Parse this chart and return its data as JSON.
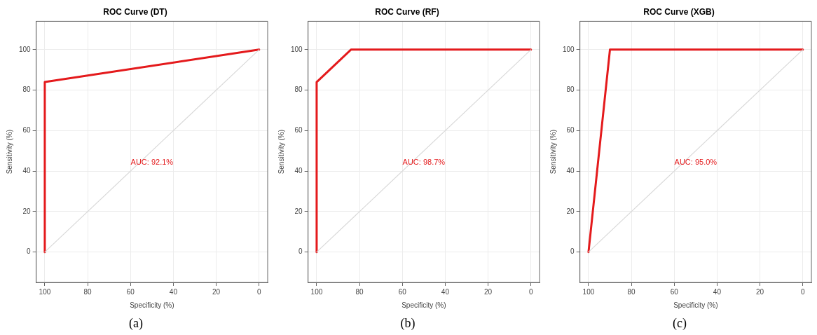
{
  "chart_data": [
    {
      "type": "line",
      "title": "ROC Curve (DT)",
      "xlabel": "Specificity (%)",
      "ylabel": "Sensitivity (%)",
      "xlim": [
        104,
        -4
      ],
      "ylim": [
        -15,
        114
      ],
      "xticks": [
        100,
        80,
        60,
        40,
        20,
        0
      ],
      "yticks": [
        0,
        20,
        40,
        60,
        80,
        100
      ],
      "grid": true,
      "series": [
        {
          "color": "#d9d9d9",
          "x": [
            100,
            0
          ],
          "values": [
            0,
            100
          ]
        },
        {
          "color": "#e41a1c",
          "x": [
            100,
            100,
            0
          ],
          "values": [
            0,
            84,
            100
          ]
        }
      ],
      "annotations": [
        "AUC: 92.1%",
        "(a)"
      ]
    },
    {
      "type": "line",
      "title": "ROC Curve (RF)",
      "xlabel": "Specificity (%)",
      "ylabel": "Sensitivity (%)",
      "xlim": [
        104,
        -4
      ],
      "ylim": [
        -15,
        114
      ],
      "xticks": [
        100,
        80,
        60,
        40,
        20,
        0
      ],
      "yticks": [
        0,
        20,
        40,
        60,
        80,
        100
      ],
      "grid": true,
      "series": [
        {
          "color": "#d9d9d9",
          "x": [
            100,
            0
          ],
          "values": [
            0,
            100
          ]
        },
        {
          "color": "#e41a1c",
          "x": [
            100,
            100,
            84,
            0
          ],
          "values": [
            0,
            84,
            100,
            100
          ]
        }
      ],
      "annotations": [
        "AUC: 98.7%",
        "(b)"
      ]
    },
    {
      "type": "line",
      "title": "ROC Curve (XGB)",
      "xlabel": "Specificity (%)",
      "ylabel": "Sensitivity (%)",
      "xlim": [
        104,
        -4
      ],
      "ylim": [
        -15,
        114
      ],
      "xticks": [
        100,
        80,
        60,
        40,
        20,
        0
      ],
      "yticks": [
        0,
        20,
        40,
        60,
        80,
        100
      ],
      "grid": true,
      "series": [
        {
          "color": "#d9d9d9",
          "x": [
            100,
            0
          ],
          "values": [
            0,
            100
          ]
        },
        {
          "color": "#e41a1c",
          "x": [
            100,
            90,
            0
          ],
          "values": [
            0,
            100,
            100
          ]
        }
      ],
      "annotations": [
        "AUC: 95.0%",
        "(c)"
      ]
    }
  ]
}
